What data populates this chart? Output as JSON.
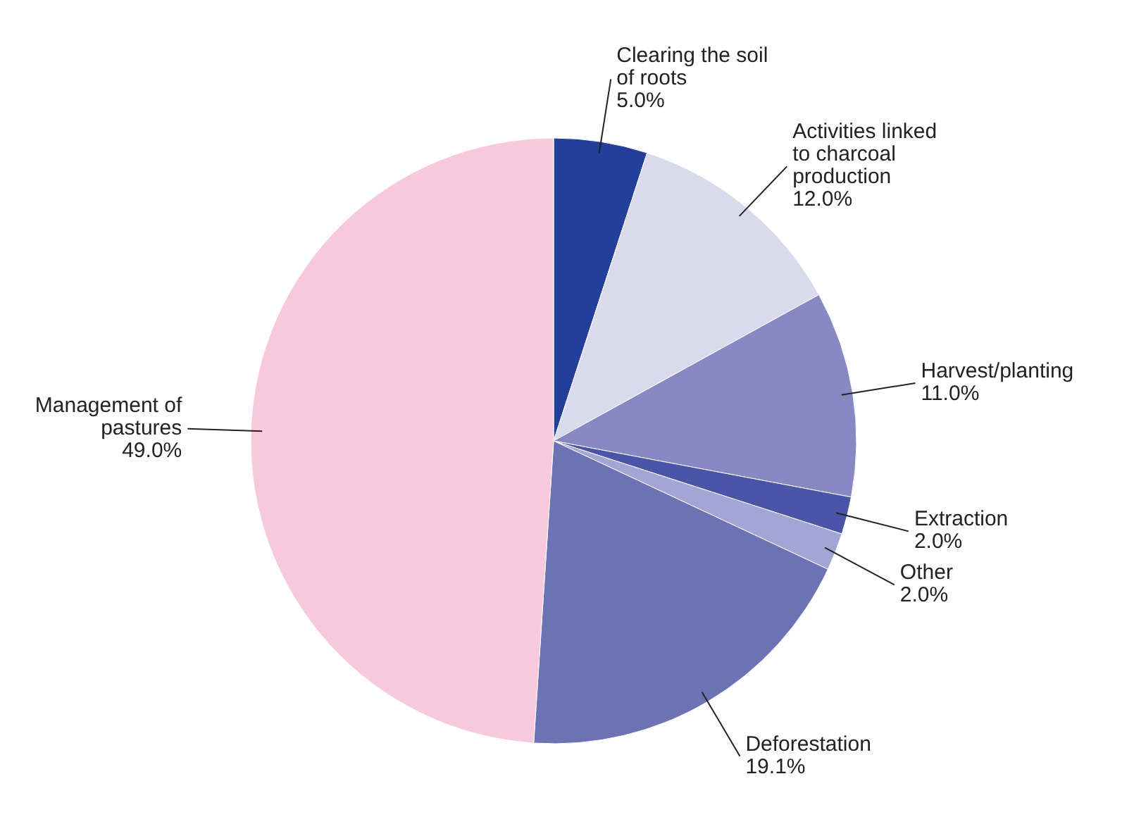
{
  "chart_data": {
    "type": "pie",
    "categories": [
      "Clearing the soil of roots",
      "Activities linked to charcoal production",
      "Harvest/planting",
      "Extraction",
      "Other",
      "Deforestation",
      "Management of pastures"
    ],
    "values": [
      5.0,
      12.0,
      11.0,
      2.0,
      2.0,
      19.1,
      49.0
    ],
    "value_labels": [
      "5.0%",
      "12.0%",
      "11.0%",
      "2.0%",
      "2.0%",
      "19.1%",
      "49.0%"
    ],
    "colors": [
      "#233f99",
      "#d9daec",
      "#8789c2",
      "#4a55a8",
      "#a3a5d4",
      "#6d72b5",
      "#f6c9dd"
    ]
  }
}
